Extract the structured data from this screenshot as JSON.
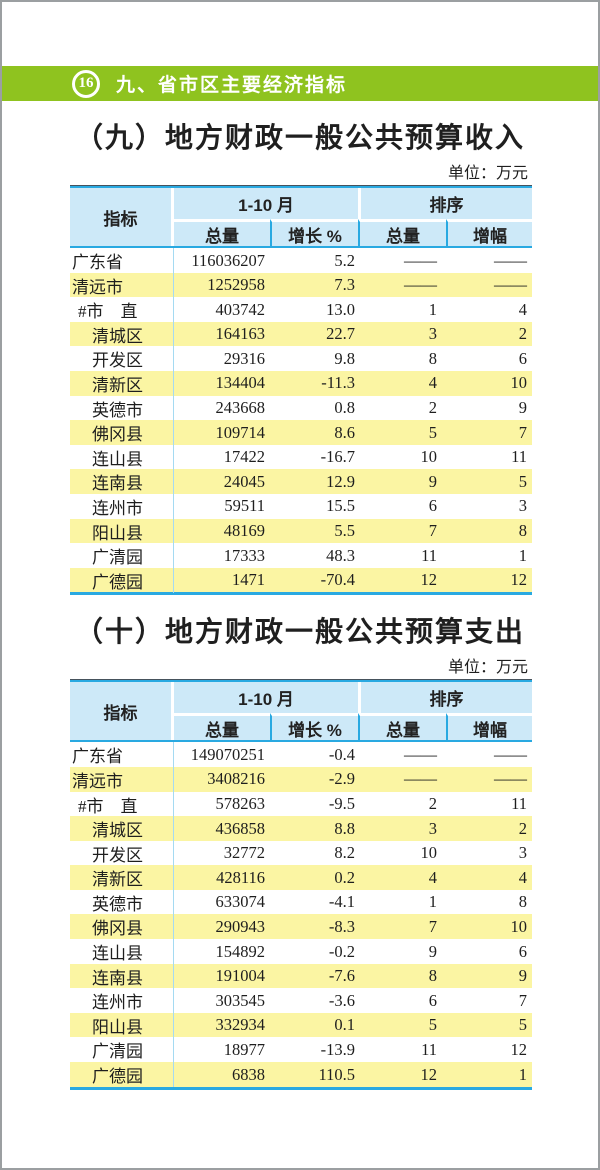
{
  "header": {
    "page_number": "16",
    "section_title": "九、省市区主要经济指标"
  },
  "colors": {
    "accent_green": "#8fc31f",
    "table_border_cyan": "#29a9e1",
    "header_blue": "#cde9f8",
    "stripe_yellow": "#fbf5a3",
    "divider_light_cyan": "#a5daf2",
    "table_top_dark": "#46525c"
  },
  "sections": [
    {
      "title": "（九）地方财政一般公共预算收入",
      "unit": "单位：万元",
      "table": {
        "col_header_indicator": "指标",
        "group_headers": [
          "1-10 月",
          "排序"
        ],
        "sub_headers": [
          "总量",
          "增长 %",
          "总量",
          "增幅"
        ],
        "rows": [
          {
            "label": "广东省",
            "indent": 0,
            "values": [
              "116036207",
              "5.2",
              "——",
              "——"
            ]
          },
          {
            "label": "清远市",
            "indent": 0,
            "values": [
              "1252958",
              "7.3",
              "——",
              "——"
            ]
          },
          {
            "label": "#市　直",
            "indent": 1,
            "values": [
              "403742",
              "13.0",
              "1",
              "4"
            ]
          },
          {
            "label": "清城区",
            "indent": 2,
            "values": [
              "164163",
              "22.7",
              "3",
              "2"
            ]
          },
          {
            "label": "开发区",
            "indent": 2,
            "values": [
              "29316",
              "9.8",
              "8",
              "6"
            ]
          },
          {
            "label": "清新区",
            "indent": 2,
            "values": [
              "134404",
              "-11.3",
              "4",
              "10"
            ]
          },
          {
            "label": "英德市",
            "indent": 2,
            "values": [
              "243668",
              "0.8",
              "2",
              "9"
            ]
          },
          {
            "label": "佛冈县",
            "indent": 2,
            "values": [
              "109714",
              "8.6",
              "5",
              "7"
            ]
          },
          {
            "label": "连山县",
            "indent": 2,
            "values": [
              "17422",
              "-16.7",
              "10",
              "11"
            ]
          },
          {
            "label": "连南县",
            "indent": 2,
            "values": [
              "24045",
              "12.9",
              "9",
              "5"
            ]
          },
          {
            "label": "连州市",
            "indent": 2,
            "values": [
              "59511",
              "15.5",
              "6",
              "3"
            ]
          },
          {
            "label": "阳山县",
            "indent": 2,
            "values": [
              "48169",
              "5.5",
              "7",
              "8"
            ]
          },
          {
            "label": "广清园",
            "indent": 2,
            "values": [
              "17333",
              "48.3",
              "11",
              "1"
            ]
          },
          {
            "label": "广德园",
            "indent": 2,
            "values": [
              "1471",
              "-70.4",
              "12",
              "12"
            ]
          }
        ]
      }
    },
    {
      "title": "（十）地方财政一般公共预算支出",
      "unit": "单位：万元",
      "table": {
        "col_header_indicator": "指标",
        "group_headers": [
          "1-10 月",
          "排序"
        ],
        "sub_headers": [
          "总量",
          "增长 %",
          "总量",
          "增幅"
        ],
        "rows": [
          {
            "label": "广东省",
            "indent": 0,
            "values": [
              "149070251",
              "-0.4",
              "——",
              "——"
            ]
          },
          {
            "label": "清远市",
            "indent": 0,
            "values": [
              "3408216",
              "-2.9",
              "——",
              "——"
            ]
          },
          {
            "label": "#市　直",
            "indent": 1,
            "values": [
              "578263",
              "-9.5",
              "2",
              "11"
            ]
          },
          {
            "label": "清城区",
            "indent": 2,
            "values": [
              "436858",
              "8.8",
              "3",
              "2"
            ]
          },
          {
            "label": "开发区",
            "indent": 2,
            "values": [
              "32772",
              "8.2",
              "10",
              "3"
            ]
          },
          {
            "label": "清新区",
            "indent": 2,
            "values": [
              "428116",
              "0.2",
              "4",
              "4"
            ]
          },
          {
            "label": "英德市",
            "indent": 2,
            "values": [
              "633074",
              "-4.1",
              "1",
              "8"
            ]
          },
          {
            "label": "佛冈县",
            "indent": 2,
            "values": [
              "290943",
              "-8.3",
              "7",
              "10"
            ]
          },
          {
            "label": "连山县",
            "indent": 2,
            "values": [
              "154892",
              "-0.2",
              "9",
              "6"
            ]
          },
          {
            "label": "连南县",
            "indent": 2,
            "values": [
              "191004",
              "-7.6",
              "8",
              "9"
            ]
          },
          {
            "label": "连州市",
            "indent": 2,
            "values": [
              "303545",
              "-3.6",
              "6",
              "7"
            ]
          },
          {
            "label": "阳山县",
            "indent": 2,
            "values": [
              "332934",
              "0.1",
              "5",
              "5"
            ]
          },
          {
            "label": "广清园",
            "indent": 2,
            "values": [
              "18977",
              "-13.9",
              "11",
              "12"
            ]
          },
          {
            "label": "广德园",
            "indent": 2,
            "values": [
              "6838",
              "110.5",
              "12",
              "1"
            ]
          }
        ]
      }
    }
  ]
}
